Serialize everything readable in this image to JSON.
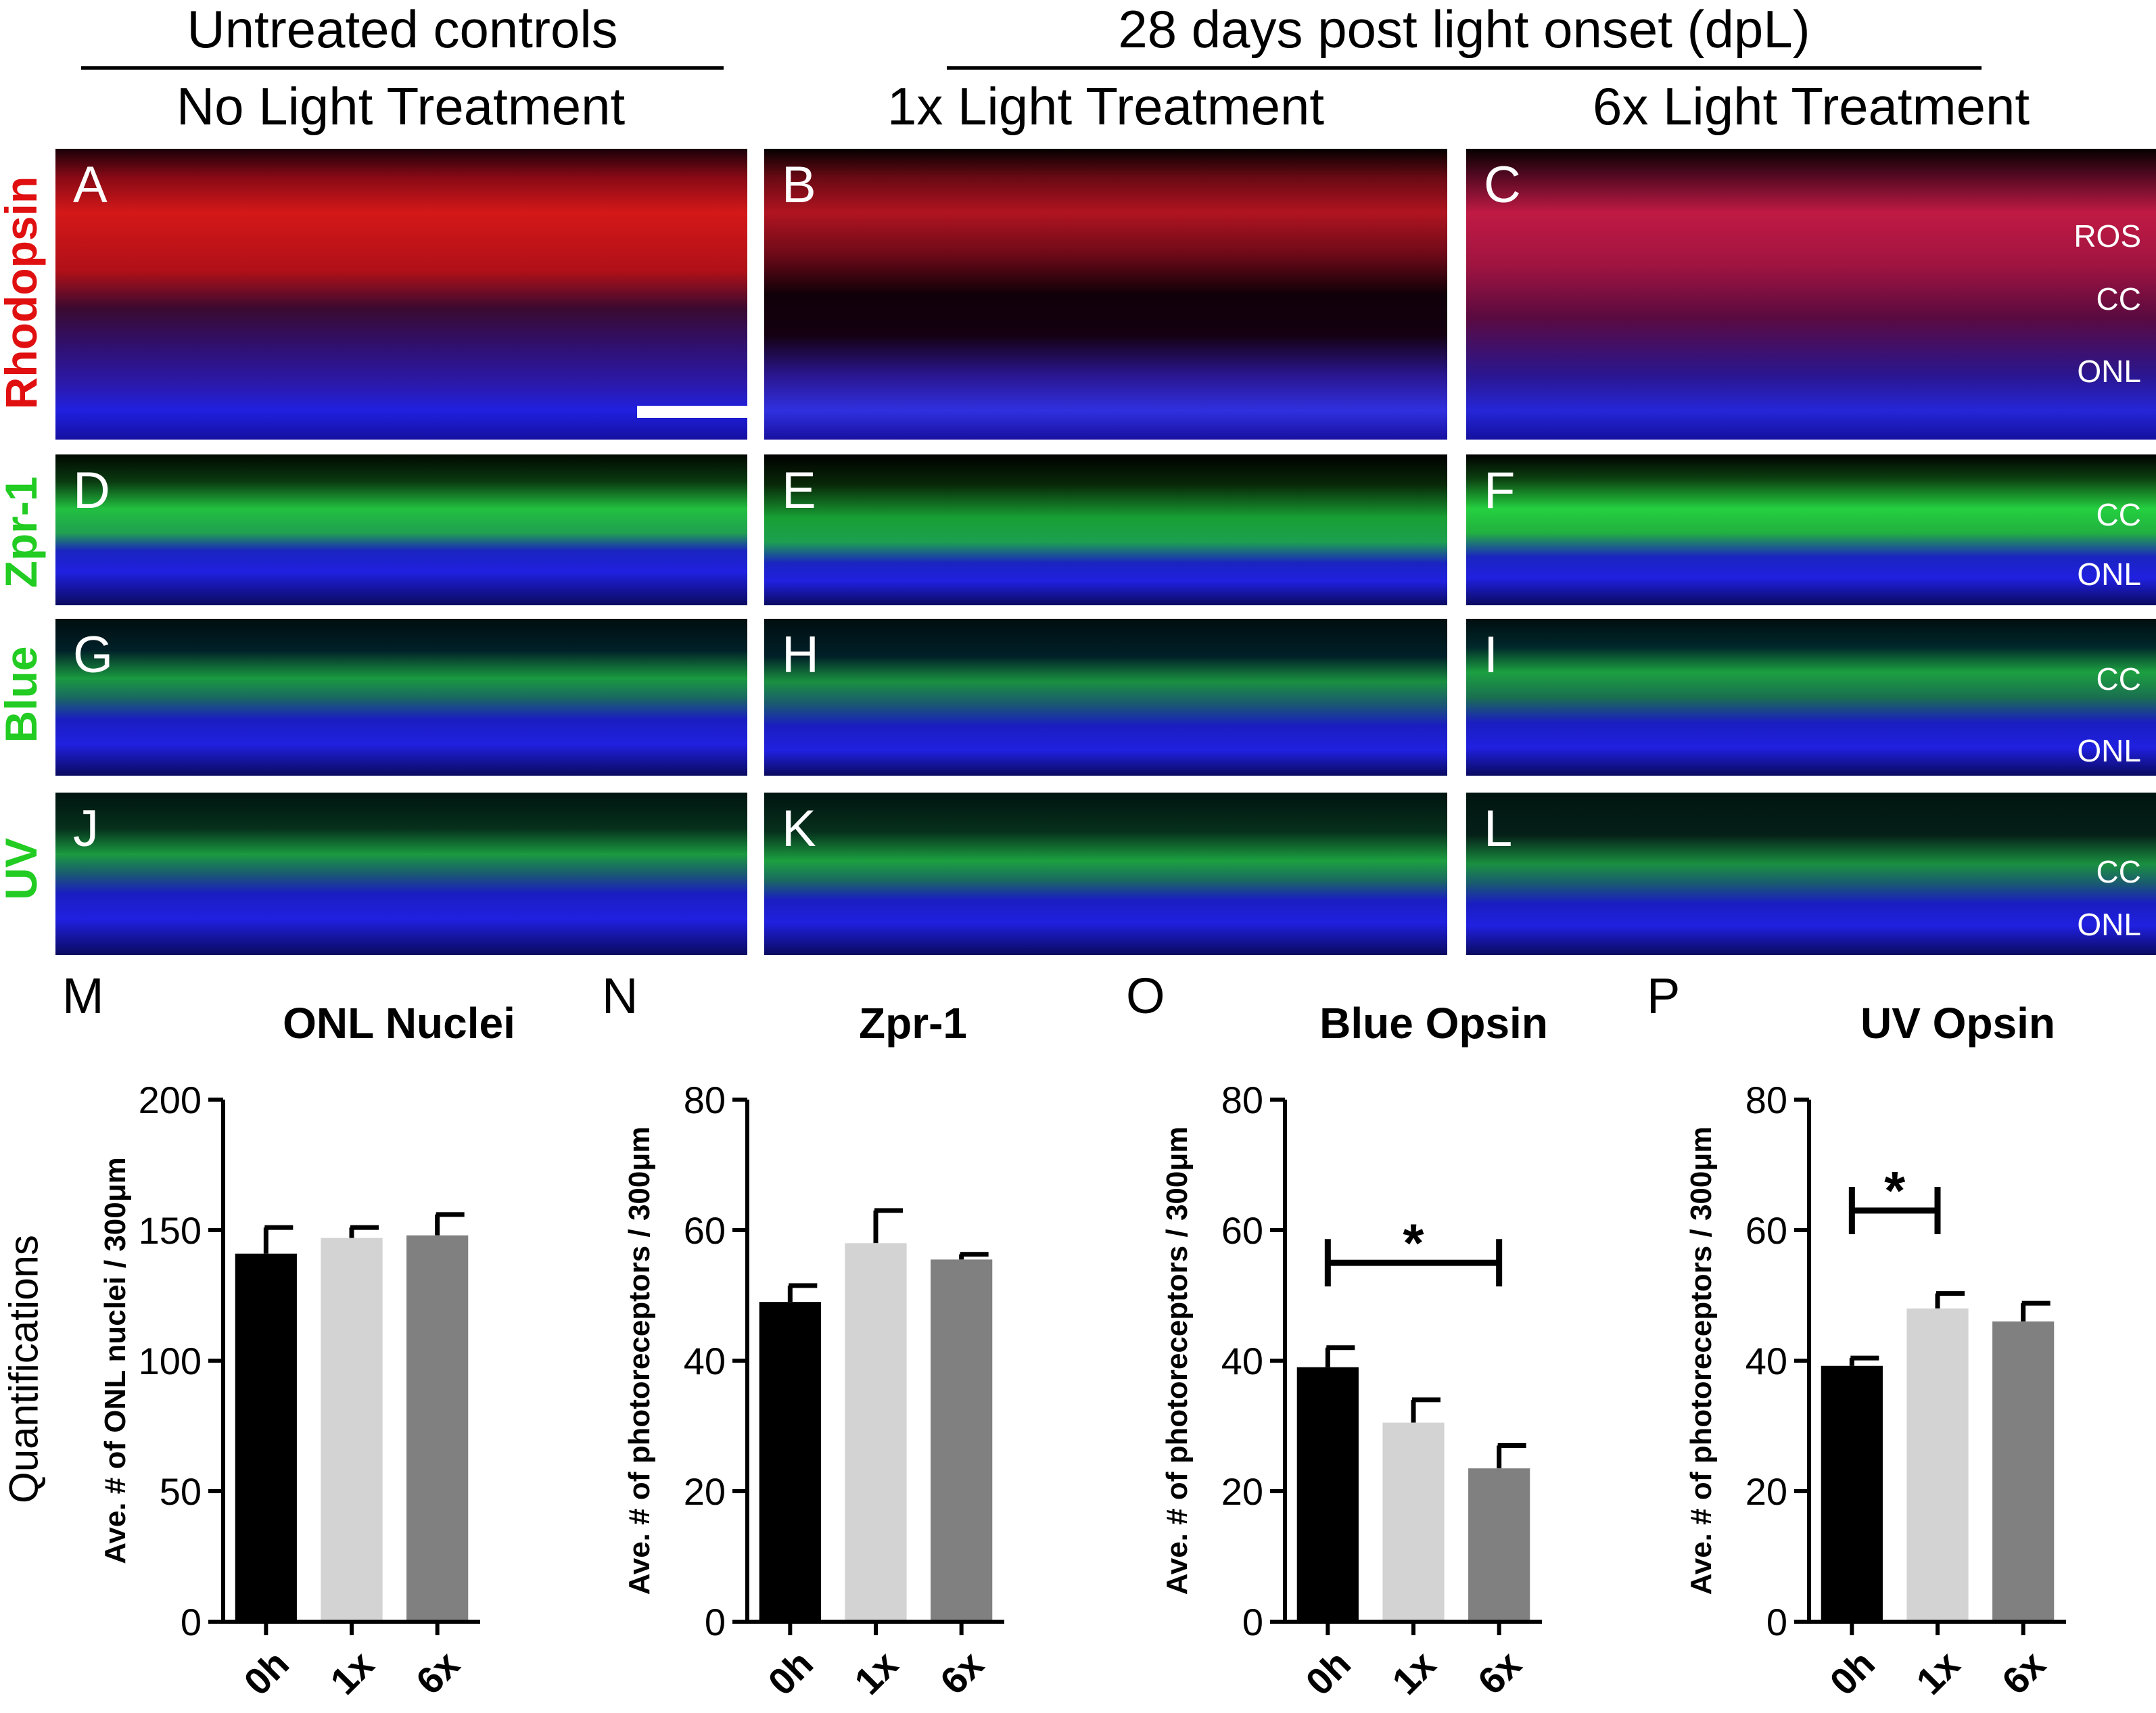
{
  "headers": {
    "untreated": "Untreated controls",
    "dpl": "28 days post light onset (dpL)",
    "col1": "No Light Treatment",
    "col2": "1x Light Treatment",
    "col3": "6x Light Treatment"
  },
  "row_labels": [
    "Rhodopsin",
    "Zpr-1",
    "Blue",
    "UV"
  ],
  "row_label_colors": [
    "#e01010",
    "#22cc22",
    "#22cc22",
    "#22cc22"
  ],
  "panel_letters": [
    "A",
    "B",
    "C",
    "D",
    "E",
    "F",
    "G",
    "H",
    "I",
    "J",
    "K",
    "L"
  ],
  "layer_labels": {
    "C": [
      "ROS",
      "CC",
      "ONL"
    ],
    "F": [
      "CC",
      "ONL"
    ],
    "I": [
      "CC",
      "ONL"
    ],
    "L": [
      "CC",
      "ONL"
    ]
  },
  "quantifications_label": "Quantifications",
  "chart_letters": [
    "M",
    "N",
    "O",
    "P"
  ],
  "chart_data": [
    {
      "type": "bar",
      "title": "ONL Nuclei",
      "categories": [
        "0h",
        "1x",
        "6x"
      ],
      "values": [
        141,
        147,
        148
      ],
      "errors": [
        10,
        4,
        8
      ],
      "ylabel": "Ave. # of ONL nuclei / 300μm",
      "ylim": [
        0,
        200
      ],
      "yticks": [
        0,
        50,
        100,
        150,
        200
      ],
      "colors": [
        "#000000",
        "#d3d3d3",
        "#808080"
      ],
      "significance": null
    },
    {
      "type": "bar",
      "title": "Zpr-1",
      "categories": [
        "0h",
        "1x",
        "6x"
      ],
      "values": [
        49,
        58,
        55.5
      ],
      "errors": [
        2.5,
        5,
        0.8
      ],
      "ylabel": "Ave. # of photoreceptors / 300μm",
      "ylim": [
        0,
        80
      ],
      "yticks": [
        0,
        20,
        40,
        60,
        80
      ],
      "colors": [
        "#000000",
        "#d3d3d3",
        "#808080"
      ],
      "significance": null
    },
    {
      "type": "bar",
      "title": "Blue Opsin",
      "categories": [
        "0h",
        "1x",
        "6x"
      ],
      "values": [
        39,
        30.5,
        23.5
      ],
      "errors": [
        3,
        3.5,
        3.5
      ],
      "ylabel": "Ave. # of photoreceptors / 300μm",
      "ylim": [
        0,
        80
      ],
      "yticks": [
        0,
        20,
        40,
        60,
        80
      ],
      "colors": [
        "#000000",
        "#d3d3d3",
        "#808080"
      ],
      "significance": {
        "from": 0,
        "to": 2,
        "y": 55,
        "mark": "*"
      }
    },
    {
      "type": "bar",
      "title": "UV Opsin",
      "categories": [
        "0h",
        "1x",
        "6x"
      ],
      "values": [
        39.2,
        48,
        46
      ],
      "errors": [
        1.2,
        2.3,
        2.8
      ],
      "ylabel": "Ave. # of photoreceptors / 300μm",
      "ylim": [
        0,
        80
      ],
      "yticks": [
        0,
        20,
        40,
        60,
        80
      ],
      "colors": [
        "#000000",
        "#d3d3d3",
        "#808080"
      ],
      "significance": {
        "from": 0,
        "to": 1,
        "y": 63,
        "mark": "*"
      }
    }
  ]
}
